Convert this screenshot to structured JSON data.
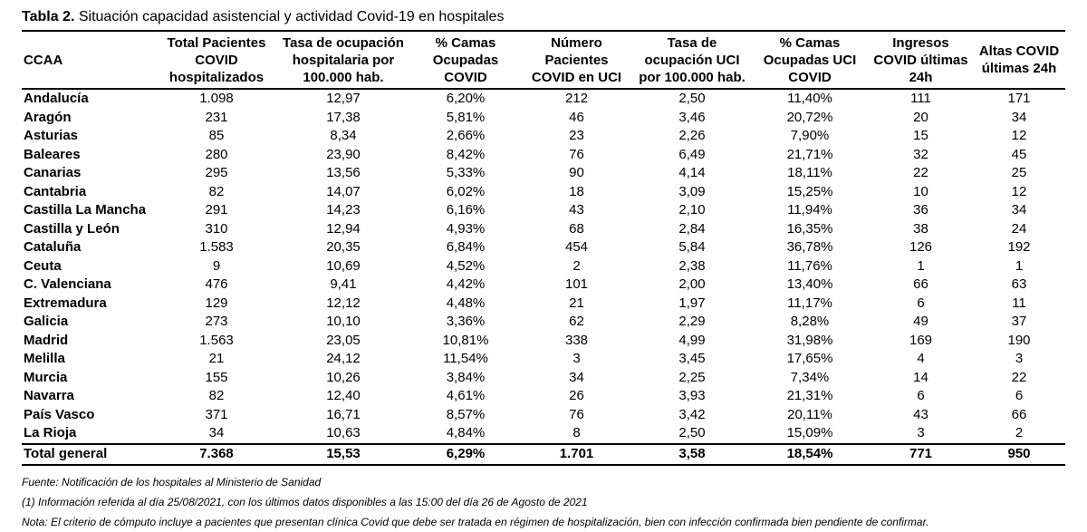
{
  "title": {
    "prefix": "Tabla 2.",
    "text": "Situación capacidad asistencial y actividad Covid-19 en hospitales"
  },
  "columns": [
    "CCAA",
    "Total Pacientes COVID hospitalizados",
    "Tasa de ocupación hospitalaria por 100.000 hab.",
    "% Camas Ocupadas COVID",
    "Número Pacientes COVID en UCI",
    "Tasa de ocupación UCI por 100.000 hab.",
    "% Camas Ocupadas UCI COVID",
    "Ingresos COVID últimas 24h",
    "Altas COVID últimas 24h"
  ],
  "rows": [
    [
      "Andalucía",
      "1.098",
      "12,97",
      "6,20%",
      "212",
      "2,50",
      "11,40%",
      "111",
      "171"
    ],
    [
      "Aragón",
      "231",
      "17,38",
      "5,81%",
      "46",
      "3,46",
      "20,72%",
      "20",
      "34"
    ],
    [
      "Asturias",
      "85",
      "8,34",
      "2,66%",
      "23",
      "2,26",
      "7,90%",
      "15",
      "12"
    ],
    [
      "Baleares",
      "280",
      "23,90",
      "8,42%",
      "76",
      "6,49",
      "21,71%",
      "32",
      "45"
    ],
    [
      "Canarias",
      "295",
      "13,56",
      "5,33%",
      "90",
      "4,14",
      "18,11%",
      "22",
      "25"
    ],
    [
      "Cantabria",
      "82",
      "14,07",
      "6,02%",
      "18",
      "3,09",
      "15,25%",
      "10",
      "12"
    ],
    [
      "Castilla La Mancha",
      "291",
      "14,23",
      "6,16%",
      "43",
      "2,10",
      "11,94%",
      "36",
      "34"
    ],
    [
      "Castilla y León",
      "310",
      "12,94",
      "4,93%",
      "68",
      "2,84",
      "16,35%",
      "38",
      "24"
    ],
    [
      "Cataluña",
      "1.583",
      "20,35",
      "6,84%",
      "454",
      "5,84",
      "36,78%",
      "126",
      "192"
    ],
    [
      "Ceuta",
      "9",
      "10,69",
      "4,52%",
      "2",
      "2,38",
      "11,76%",
      "1",
      "1"
    ],
    [
      "C. Valenciana",
      "476",
      "9,41",
      "4,42%",
      "101",
      "2,00",
      "13,40%",
      "66",
      "63"
    ],
    [
      "Extremadura",
      "129",
      "12,12",
      "4,48%",
      "21",
      "1,97",
      "11,17%",
      "6",
      "11"
    ],
    [
      "Galicia",
      "273",
      "10,10",
      "3,36%",
      "62",
      "2,29",
      "8,28%",
      "49",
      "37"
    ],
    [
      "Madrid",
      "1.563",
      "23,05",
      "10,81%",
      "338",
      "4,99",
      "31,98%",
      "169",
      "190"
    ],
    [
      "Melilla",
      "21",
      "24,12",
      "11,54%",
      "3",
      "3,45",
      "17,65%",
      "4",
      "3"
    ],
    [
      "Murcia",
      "155",
      "10,26",
      "3,84%",
      "34",
      "2,25",
      "7,34%",
      "14",
      "22"
    ],
    [
      "Navarra",
      "82",
      "12,40",
      "4,61%",
      "26",
      "3,93",
      "21,31%",
      "6",
      "6"
    ],
    [
      "País Vasco",
      "371",
      "16,71",
      "8,57%",
      "76",
      "3,42",
      "20,11%",
      "43",
      "66"
    ],
    [
      "La Rioja",
      "34",
      "10,63",
      "4,84%",
      "8",
      "2,50",
      "15,09%",
      "3",
      "2"
    ]
  ],
  "total": [
    "Total general",
    "7.368",
    "15,53",
    "6,29%",
    "1.701",
    "3,58",
    "18,54%",
    "771",
    "950"
  ],
  "notes": {
    "source": "Fuente: Notificación de los hospitales al Ministerio de Sanidad",
    "info": "(1) Información referida al día 25/08/2021, con los últimos datos disponibles a las 15:00 del día 26 de Agosto de 2021",
    "criteria": "Nota:  El criterio de cómputo incluye a pacientes que presentan clínica Covid que debe ser tratada en régimen de hospitalización, bien con infección confirmada bien pendiente de confirmar."
  }
}
